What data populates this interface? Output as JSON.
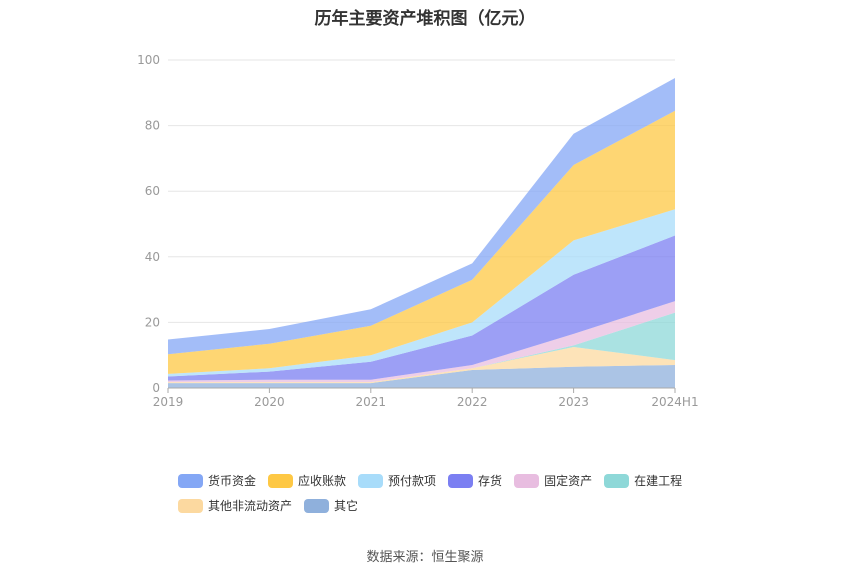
{
  "source": "数据来源：恒生聚源",
  "chart_data": {
    "type": "area",
    "stacked": true,
    "title": "历年主要资产堆积图（亿元）",
    "categories": [
      "2019",
      "2020",
      "2021",
      "2022",
      "2023",
      "2024H1"
    ],
    "y_ticks": [
      "0",
      "20",
      "40",
      "60",
      "80",
      "100"
    ],
    "ylim": [
      0,
      100
    ],
    "grid": true,
    "legend_position": "bottom",
    "series": [
      {
        "name": "其它",
        "color": "#8fb0dc",
        "values": [
          1.5,
          1.5,
          1.5,
          5.5,
          6.5,
          7.0
        ]
      },
      {
        "name": "其他非流动资产",
        "color": "#fcd9a0",
        "values": [
          0.3,
          0.3,
          0.3,
          0.5,
          6.0,
          1.5
        ]
      },
      {
        "name": "在建工程",
        "color": "#8ed8d8",
        "values": [
          0.0,
          0.0,
          0.0,
          0.0,
          0.5,
          14.5
        ]
      },
      {
        "name": "固定资产",
        "color": "#e8bde0",
        "values": [
          0.5,
          0.7,
          0.7,
          1.0,
          3.5,
          3.5
        ]
      },
      {
        "name": "存货",
        "color": "#7b7ff2",
        "values": [
          1.2,
          2.5,
          5.5,
          9.0,
          18.0,
          20.0
        ]
      },
      {
        "name": "预付款项",
        "color": "#a8dcfa",
        "values": [
          0.8,
          1.0,
          2.0,
          4.0,
          10.5,
          8.0
        ]
      },
      {
        "name": "应收账款",
        "color": "#fec844",
        "values": [
          6.0,
          7.5,
          9.0,
          13.0,
          23.0,
          30.0
        ]
      },
      {
        "name": "货币资金",
        "color": "#84a7f5",
        "values": [
          4.5,
          4.5,
          5.0,
          5.0,
          9.5,
          10.0
        ]
      }
    ],
    "legend_order": [
      "货币资金",
      "应收账款",
      "预付款项",
      "存货",
      "固定资产",
      "在建工程",
      "其他非流动资产",
      "其它"
    ]
  }
}
